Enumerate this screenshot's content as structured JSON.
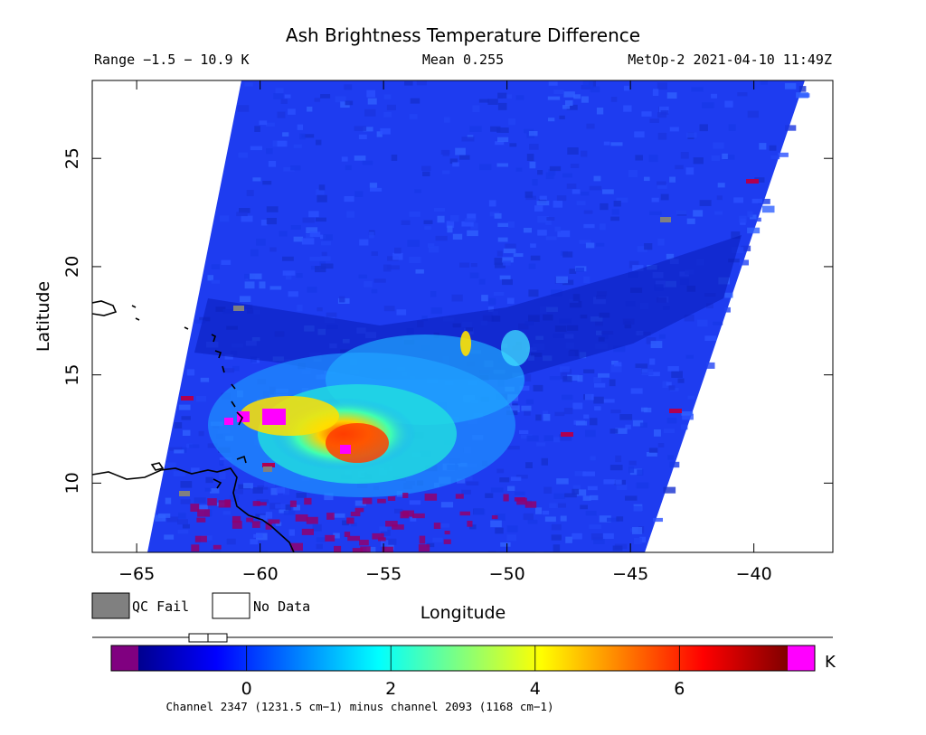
{
  "title": "Ash Brightness Temperature Difference",
  "header": {
    "range": "Range −1.5 − 10.9 K",
    "mean": "Mean 0.255",
    "source": "MetOp-2 2021-04-10 11:49Z"
  },
  "axes": {
    "xlabel": "Longitude",
    "ylabel": "Latitude",
    "x_range": [
      -66.8,
      -36.8
    ],
    "y_range": [
      6.8,
      28.6
    ],
    "x_ticks": [
      -65,
      -60,
      -55,
      -50,
      -45,
      -40
    ],
    "x_tick_labels": [
      "−65",
      "−60",
      "−55",
      "−50",
      "−45",
      "−40"
    ],
    "y_ticks": [
      10,
      15,
      20,
      25
    ],
    "y_tick_labels": [
      "10",
      "15",
      "20",
      "25"
    ]
  },
  "legend": {
    "qc_fail": "QC Fail",
    "no_data": "No Data",
    "qc_fail_color": "#808080",
    "no_data_color": "#ffffff"
  },
  "colorbar": {
    "unit": "K",
    "min": -1.5,
    "max": 7.5,
    "tick_values": [
      0,
      2,
      4,
      6
    ],
    "tick_labels": [
      "0",
      "2",
      "4",
      "6"
    ],
    "under_color": "#800080",
    "over_color": "#ff00ff",
    "caption": "Channel 2347 (1231.5 cm−1) minus channel 2093 (1168 cm−1)"
  },
  "colors": {
    "field_background": "#1e3cf0",
    "coastline": "#000000"
  }
}
